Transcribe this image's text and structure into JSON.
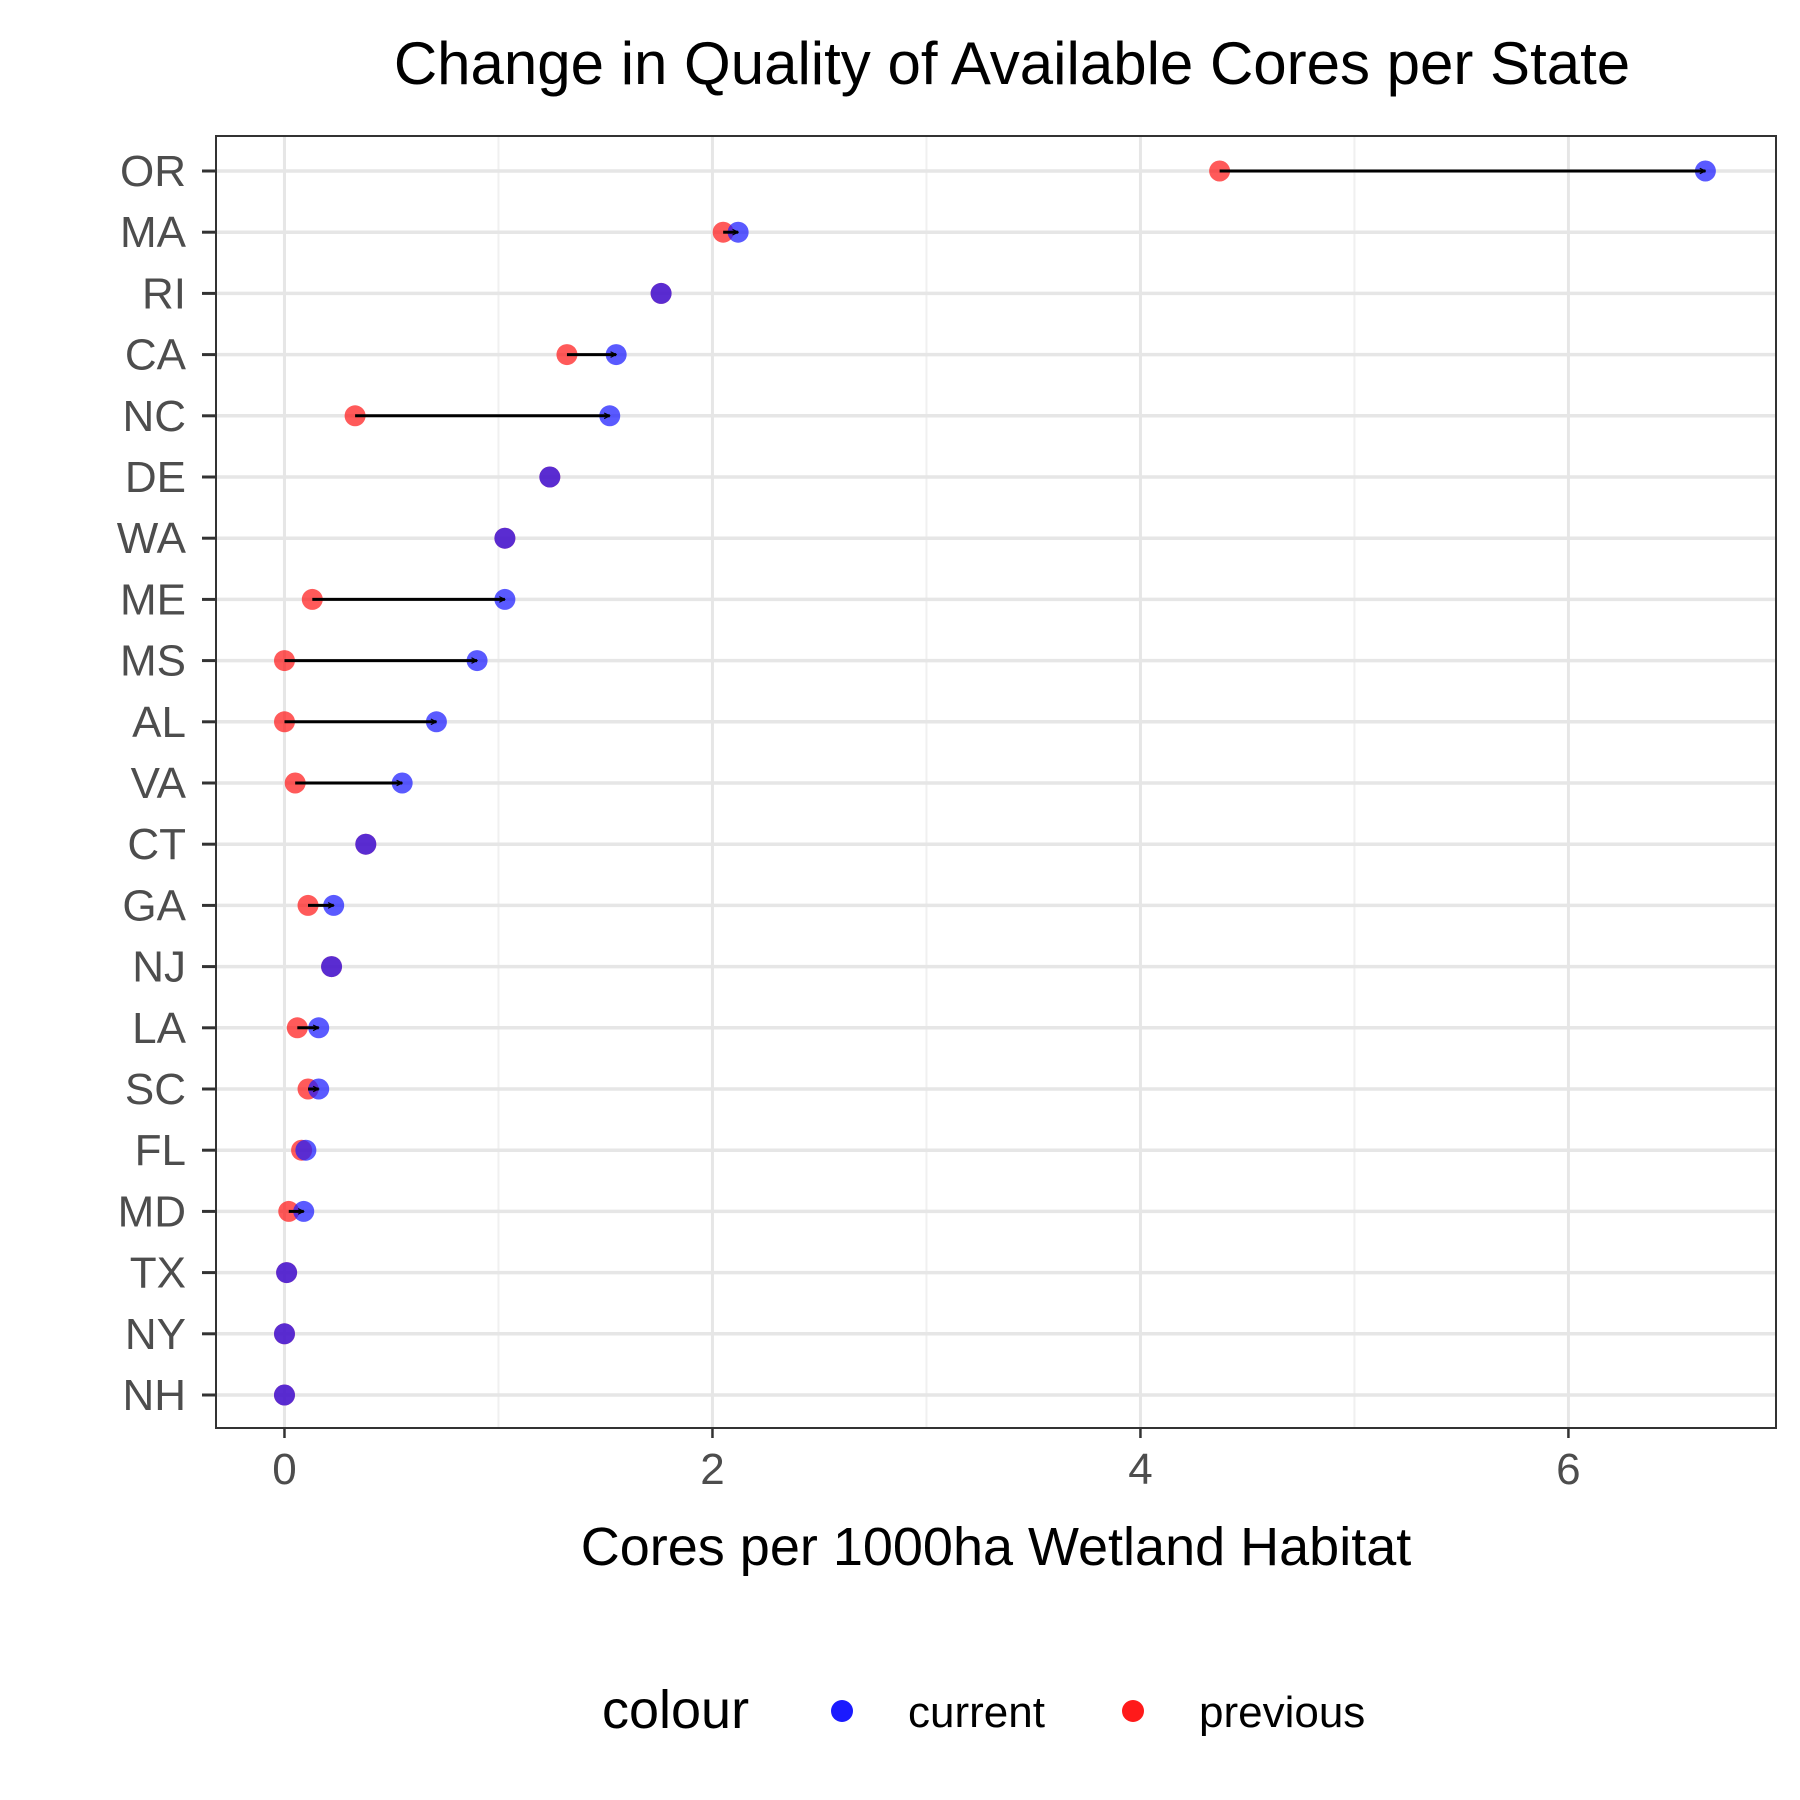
{
  "chart_data": {
    "type": "dumbbell",
    "title": "Change in Quality of Available Cores per State",
    "xlabel": "Cores per 1000ha Wetland Habitat",
    "ylabel": "",
    "xlim": [
      -0.32,
      6.97
    ],
    "xticks": [
      0,
      2,
      4,
      6
    ],
    "xtick_labels": [
      "0",
      "2",
      "4",
      "6"
    ],
    "grid": true,
    "categories": [
      "OR",
      "MA",
      "RI",
      "CA",
      "NC",
      "DE",
      "WA",
      "ME",
      "MS",
      "AL",
      "VA",
      "CT",
      "GA",
      "NJ",
      "LA",
      "SC",
      "FL",
      "MD",
      "TX",
      "NY",
      "NH"
    ],
    "series": [
      {
        "name": "current",
        "color": "#1a1aff",
        "values": [
          6.64,
          2.12,
          1.76,
          1.55,
          1.52,
          1.24,
          1.03,
          1.03,
          0.9,
          0.71,
          0.55,
          0.38,
          0.23,
          0.22,
          0.16,
          0.16,
          0.1,
          0.09,
          0.01,
          0.0,
          0.0
        ]
      },
      {
        "name": "previous",
        "color": "#ff1a1a",
        "values": [
          4.37,
          2.05,
          1.76,
          1.32,
          0.33,
          1.24,
          1.03,
          0.13,
          0.0,
          0.0,
          0.05,
          0.38,
          0.11,
          0.22,
          0.06,
          0.11,
          0.08,
          0.02,
          0.01,
          0.0,
          0.0
        ]
      }
    ],
    "legend": {
      "title": "colour",
      "position": "bottom",
      "entries": [
        {
          "label": "current",
          "color": "#1a1aff"
        },
        {
          "label": "previous",
          "color": "#ff1a1a"
        }
      ]
    }
  }
}
